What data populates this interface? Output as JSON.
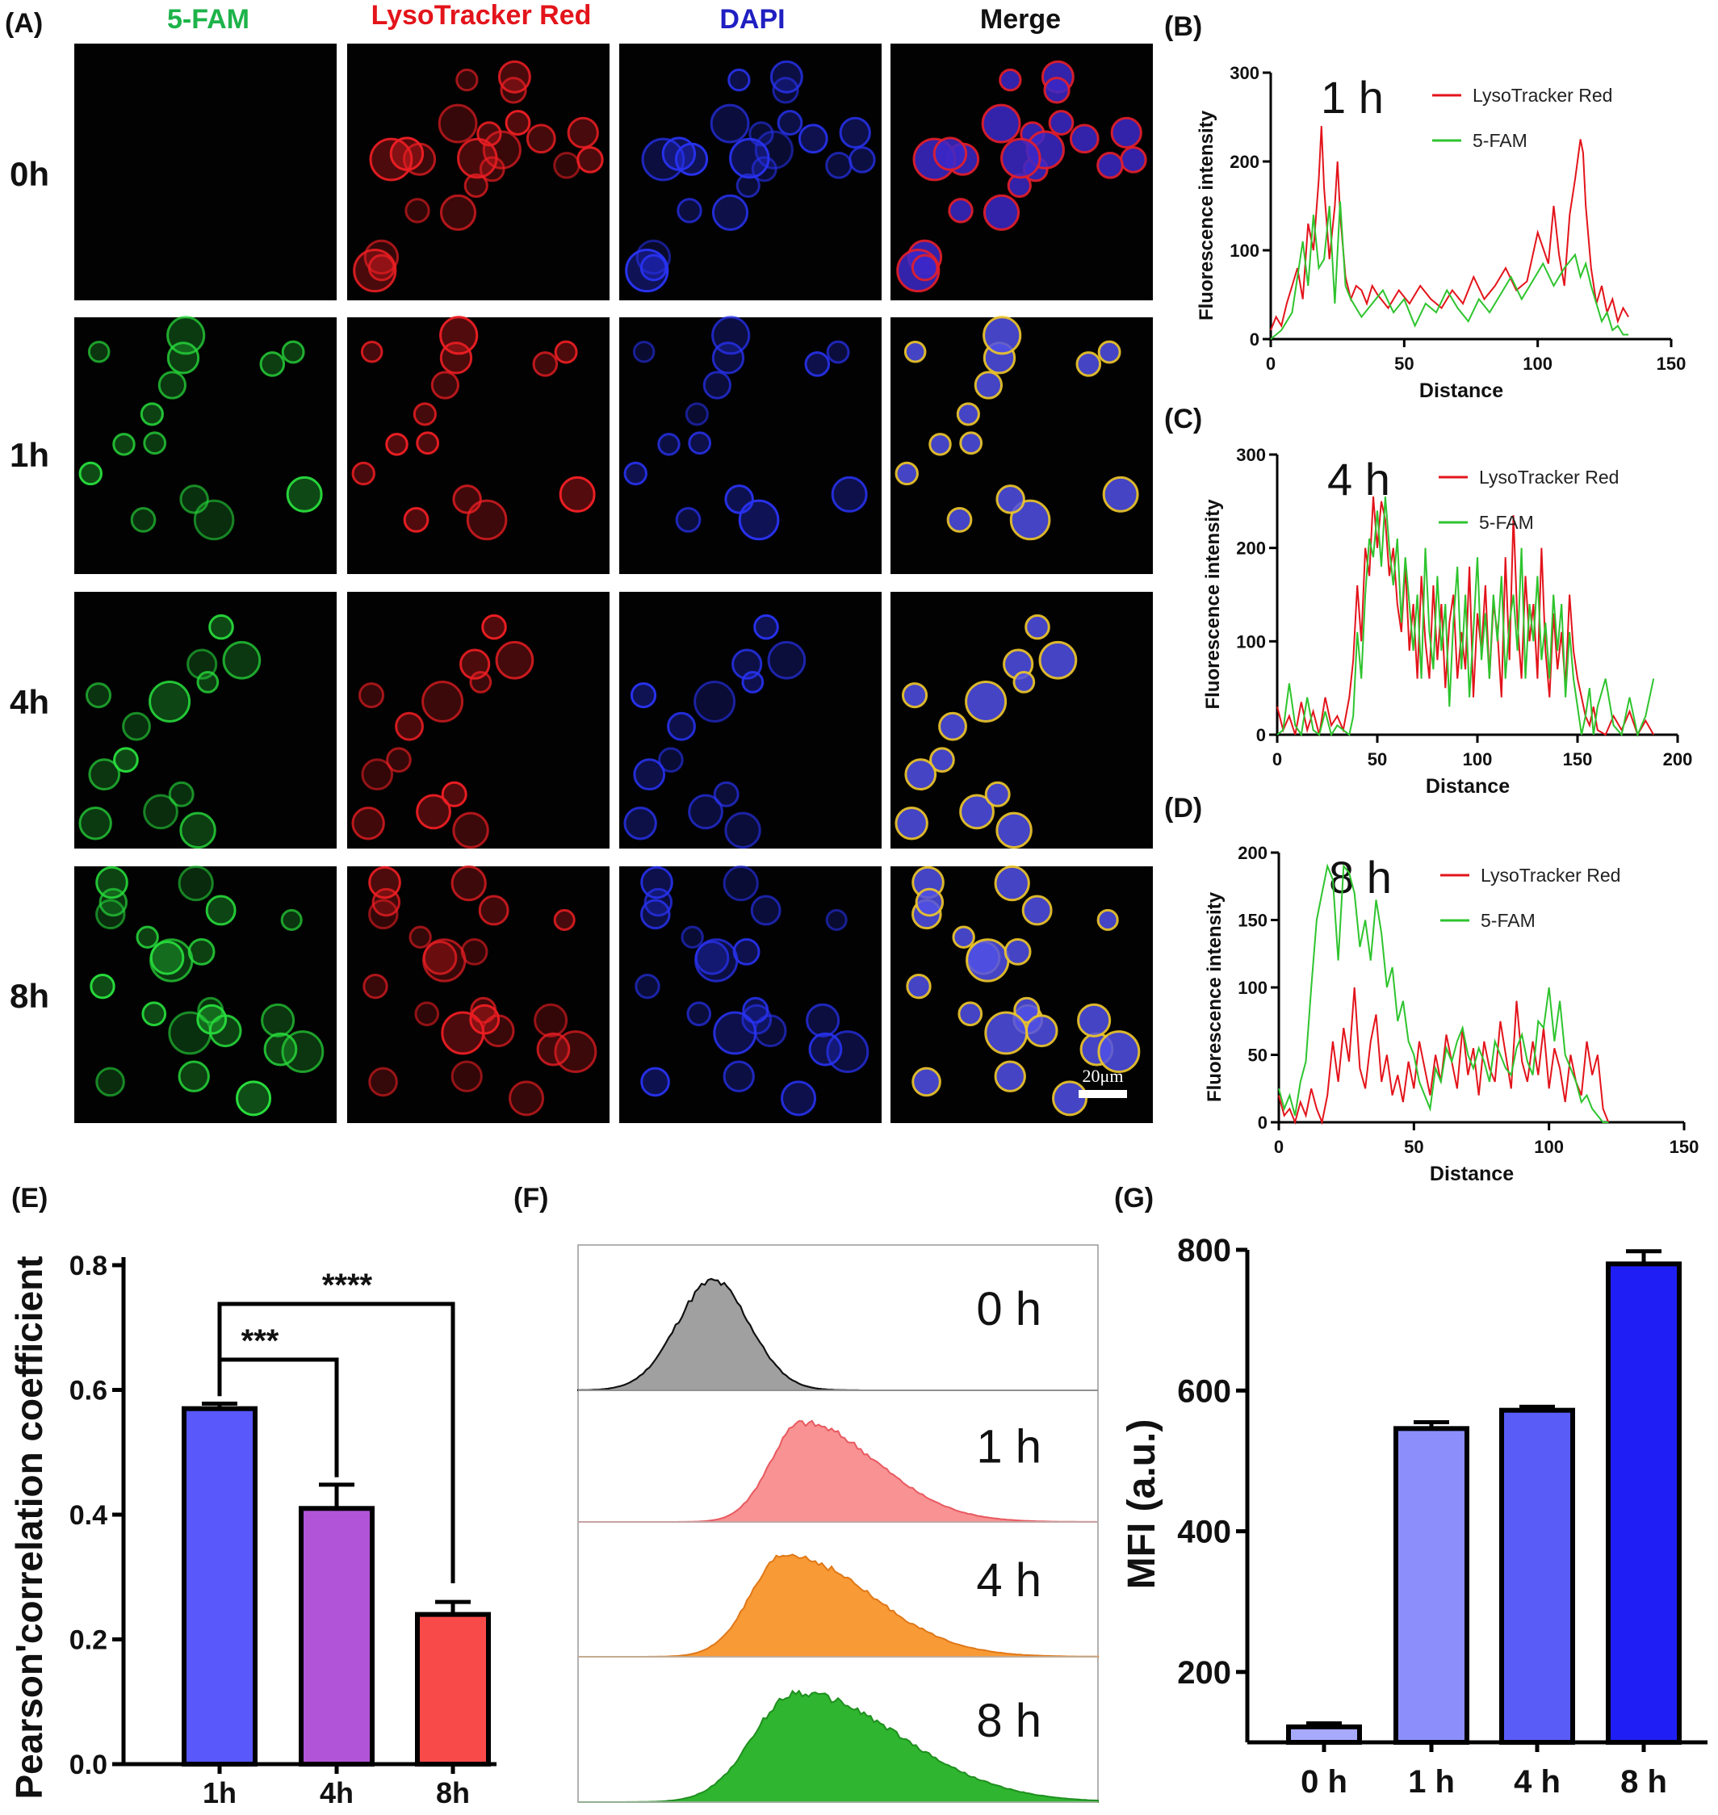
{
  "panels": {
    "A": "(A)",
    "B": "(B)",
    "C": "(C)",
    "D": "(D)",
    "E": "(E)",
    "F": "(F)",
    "G": "(G)"
  },
  "microscopy": {
    "channels": [
      {
        "label": "5-FAM",
        "color": "#1db34a"
      },
      {
        "label": "LysoTracker Red",
        "color": "#e3141b"
      },
      {
        "label": "DAPI",
        "color": "#1f1fc2"
      },
      {
        "label": "Merge",
        "color": "#111111"
      }
    ],
    "rows": [
      "0h",
      "1h",
      "4h",
      "8h"
    ],
    "scale_bar": "20μm"
  },
  "chart_data": [
    {
      "id": "B",
      "type": "line",
      "title": "1 h",
      "xlabel": "Distance",
      "ylabel": "Fluorescence intensity",
      "xlim": [
        0,
        150
      ],
      "ylim": [
        0,
        300
      ],
      "xticks": [
        0,
        50,
        100,
        150
      ],
      "yticks": [
        0,
        100,
        200,
        300
      ],
      "series": [
        {
          "name": "LysoTracker Red",
          "color": "#e3141b",
          "x": [
            0,
            2,
            4,
            6,
            8,
            10,
            12,
            14,
            16,
            18,
            19,
            20,
            22,
            24,
            25,
            26,
            28,
            30,
            32,
            34,
            36,
            38,
            40,
            44,
            48,
            52,
            56,
            60,
            64,
            68,
            72,
            76,
            80,
            84,
            88,
            92,
            96,
            100,
            104,
            106,
            108,
            110,
            112,
            114,
            116,
            117,
            118,
            120,
            122,
            124,
            126,
            128,
            130,
            132,
            134
          ],
          "y": [
            10,
            25,
            15,
            40,
            60,
            80,
            45,
            130,
            100,
            180,
            240,
            170,
            90,
            150,
            200,
            140,
            70,
            45,
            60,
            55,
            40,
            60,
            50,
            35,
            55,
            40,
            60,
            45,
            35,
            55,
            40,
            70,
            45,
            60,
            80,
            55,
            65,
            120,
            85,
            150,
            95,
            60,
            140,
            180,
            225,
            210,
            150,
            80,
            40,
            60,
            30,
            45,
            20,
            35,
            25
          ]
        },
        {
          "name": "5-FAM",
          "color": "#2ec42e",
          "x": [
            0,
            4,
            8,
            12,
            14,
            16,
            18,
            20,
            22,
            24,
            26,
            28,
            30,
            34,
            38,
            42,
            46,
            50,
            54,
            58,
            62,
            66,
            70,
            74,
            78,
            82,
            86,
            90,
            94,
            98,
            102,
            106,
            110,
            114,
            116,
            118,
            120,
            122,
            124,
            126,
            128,
            130,
            132,
            134
          ],
          "y": [
            0,
            10,
            30,
            110,
            60,
            140,
            80,
            90,
            150,
            40,
            155,
            60,
            45,
            25,
            40,
            55,
            30,
            45,
            15,
            40,
            30,
            55,
            35,
            20,
            45,
            30,
            50,
            70,
            45,
            65,
            85,
            60,
            80,
            95,
            70,
            85,
            60,
            40,
            20,
            30,
            10,
            15,
            5,
            5
          ]
        }
      ]
    },
    {
      "id": "C",
      "type": "line",
      "title": "4 h",
      "xlabel": "Distance",
      "ylabel": "Fluorescence intensity",
      "xlim": [
        0,
        200
      ],
      "ylim": [
        0,
        300
      ],
      "xticks": [
        0,
        50,
        100,
        150,
        200
      ],
      "yticks": [
        0,
        100,
        200,
        300
      ],
      "series": [
        {
          "name": "LysoTracker Red",
          "color": "#e3141b",
          "x": [
            0,
            3,
            6,
            9,
            12,
            15,
            18,
            21,
            24,
            27,
            30,
            33,
            36,
            38,
            40,
            42,
            44,
            46,
            48,
            50,
            52,
            54,
            56,
            58,
            60,
            62,
            64,
            66,
            68,
            70,
            72,
            74,
            76,
            78,
            80,
            82,
            84,
            86,
            88,
            90,
            92,
            94,
            96,
            98,
            100,
            102,
            104,
            106,
            108,
            110,
            112,
            114,
            116,
            118,
            120,
            122,
            124,
            126,
            128,
            130,
            132,
            134,
            136,
            138,
            140,
            142,
            144,
            146,
            148,
            150,
            152,
            154,
            156,
            158,
            160,
            164,
            168,
            172,
            176,
            180,
            184,
            188
          ],
          "y": [
            30,
            5,
            20,
            0,
            35,
            5,
            25,
            0,
            40,
            10,
            20,
            5,
            40,
            80,
            160,
            100,
            200,
            170,
            255,
            200,
            250,
            230,
            170,
            200,
            140,
            110,
            180,
            90,
            140,
            60,
            170,
            100,
            60,
            160,
            80,
            140,
            50,
            120,
            150,
            60,
            110,
            70,
            180,
            40,
            130,
            90,
            160,
            60,
            140,
            110,
            40,
            190,
            80,
            235,
            120,
            60,
            170,
            100,
            140,
            60,
            200,
            90,
            40,
            130,
            70,
            110,
            50,
            150,
            90,
            60,
            40,
            20,
            10,
            30,
            5,
            0,
            20,
            5,
            25,
            0,
            15,
            0
          ]
        },
        {
          "name": "5-FAM",
          "color": "#2ec42e",
          "x": [
            0,
            3,
            6,
            9,
            12,
            15,
            18,
            21,
            24,
            27,
            30,
            33,
            36,
            38,
            40,
            42,
            44,
            46,
            48,
            50,
            52,
            54,
            56,
            58,
            60,
            62,
            64,
            66,
            68,
            70,
            72,
            74,
            76,
            78,
            80,
            82,
            84,
            86,
            88,
            90,
            92,
            94,
            96,
            98,
            100,
            102,
            104,
            106,
            108,
            110,
            112,
            114,
            116,
            118,
            120,
            122,
            124,
            126,
            128,
            130,
            132,
            134,
            136,
            138,
            140,
            142,
            144,
            146,
            148,
            150,
            152,
            154,
            156,
            158,
            160,
            164,
            168,
            172,
            176,
            180,
            184,
            188
          ],
          "y": [
            0,
            5,
            55,
            10,
            0,
            40,
            5,
            0,
            25,
            0,
            10,
            5,
            0,
            20,
            110,
            60,
            150,
            210,
            190,
            240,
            180,
            255,
            200,
            160,
            210,
            120,
            190,
            140,
            90,
            150,
            60,
            200,
            110,
            70,
            170,
            90,
            140,
            30,
            120,
            180,
            70,
            150,
            40,
            110,
            190,
            80,
            130,
            60,
            150,
            100,
            170,
            60,
            120,
            150,
            90,
            200,
            60,
            140,
            100,
            170,
            80,
            120,
            60,
            150,
            90,
            140,
            40,
            110,
            60,
            30,
            0,
            20,
            50,
            0,
            30,
            60,
            10,
            0,
            40,
            0,
            20,
            60
          ]
        }
      ]
    },
    {
      "id": "D",
      "type": "line",
      "title": "8 h",
      "xlabel": "Distance",
      "ylabel": "Fluorescence intensity",
      "xlim": [
        0,
        150
      ],
      "ylim": [
        0,
        200
      ],
      "xticks": [
        0,
        50,
        100,
        150
      ],
      "yticks": [
        0,
        50,
        100,
        150,
        200
      ],
      "series": [
        {
          "name": "LysoTracker Red",
          "color": "#e3141b",
          "x": [
            0,
            2,
            4,
            6,
            8,
            10,
            12,
            14,
            16,
            18,
            20,
            22,
            24,
            26,
            28,
            30,
            32,
            34,
            36,
            38,
            40,
            42,
            44,
            46,
            48,
            50,
            52,
            54,
            56,
            58,
            60,
            62,
            64,
            66,
            68,
            70,
            72,
            74,
            76,
            78,
            80,
            82,
            84,
            86,
            88,
            90,
            92,
            94,
            96,
            98,
            100,
            102,
            104,
            106,
            108,
            110,
            112,
            114,
            116,
            118,
            120,
            122
          ],
          "y": [
            20,
            5,
            10,
            0,
            15,
            5,
            25,
            10,
            0,
            20,
            60,
            30,
            70,
            45,
            100,
            40,
            25,
            60,
            80,
            30,
            50,
            20,
            35,
            15,
            45,
            25,
            60,
            40,
            20,
            50,
            30,
            65,
            45,
            25,
            70,
            35,
            55,
            20,
            60,
            40,
            30,
            75,
            50,
            25,
            90,
            45,
            30,
            60,
            35,
            70,
            25,
            55,
            40,
            15,
            50,
            30,
            20,
            60,
            35,
            50,
            10,
            0
          ]
        },
        {
          "name": "5-FAM",
          "color": "#2ec42e",
          "x": [
            0,
            2,
            4,
            6,
            8,
            10,
            12,
            14,
            16,
            18,
            20,
            22,
            24,
            26,
            28,
            30,
            32,
            34,
            36,
            38,
            40,
            42,
            44,
            46,
            48,
            50,
            52,
            54,
            56,
            58,
            60,
            62,
            64,
            66,
            68,
            70,
            72,
            74,
            76,
            78,
            80,
            82,
            84,
            86,
            88,
            90,
            92,
            94,
            96,
            98,
            100,
            102,
            104,
            106,
            108,
            110,
            112,
            114,
            116,
            118,
            120,
            122
          ],
          "y": [
            25,
            10,
            20,
            5,
            30,
            45,
            100,
            150,
            170,
            190,
            180,
            120,
            190,
            185,
            170,
            130,
            150,
            120,
            165,
            140,
            100,
            115,
            75,
            90,
            60,
            50,
            30,
            20,
            10,
            40,
            30,
            55,
            45,
            60,
            70,
            50,
            40,
            55,
            45,
            30,
            60,
            50,
            40,
            35,
            55,
            65,
            45,
            35,
            75,
            70,
            100,
            60,
            90,
            50,
            40,
            30,
            15,
            20,
            10,
            5,
            0,
            0
          ]
        }
      ]
    },
    {
      "id": "E",
      "type": "bar",
      "xlabel": "",
      "ylabel": "Pearson'correlation coefficient",
      "ylim": [
        0,
        0.8
      ],
      "yticks": [
        "0.0",
        "0.2",
        "0.4",
        "0.6",
        "0.8"
      ],
      "categories": [
        "1h",
        "4h",
        "8h"
      ],
      "values": [
        0.57,
        0.41,
        0.24
      ],
      "errors": [
        0.008,
        0.038,
        0.02
      ],
      "colors": [
        "#5858fb",
        "#b154d8",
        "#f94a4a"
      ],
      "significance": [
        {
          "from": "1h",
          "to": "4h",
          "label": "***"
        },
        {
          "from": "1h",
          "to": "8h",
          "label": "****"
        }
      ]
    },
    {
      "id": "F",
      "type": "area",
      "histograms": [
        {
          "label": "0 h",
          "color": "#a0a0a0",
          "peak": 0.26,
          "width": 0.07
        },
        {
          "label": "1 h",
          "color": "#f89293",
          "peak": 0.43,
          "width": 0.08
        },
        {
          "label": "4 h",
          "color": "#f89a35",
          "peak": 0.4,
          "width": 0.09
        },
        {
          "label": "8 h",
          "color": "#2fb52f",
          "peak": 0.42,
          "width": 0.11
        }
      ]
    },
    {
      "id": "G",
      "type": "bar",
      "xlabel": "",
      "ylabel": "MFI (a.u.)",
      "ylim": [
        100,
        800
      ],
      "yticks": [
        200,
        400,
        600,
        800
      ],
      "categories": [
        "0 h",
        "1 h",
        "4 h",
        "8 h"
      ],
      "values": [
        122,
        546,
        572,
        780
      ],
      "errors": [
        5,
        9,
        5,
        18
      ],
      "colors": [
        "#a7a9fb",
        "#8c8efc",
        "#5a5cf8",
        "#1f1ff5"
      ]
    }
  ]
}
